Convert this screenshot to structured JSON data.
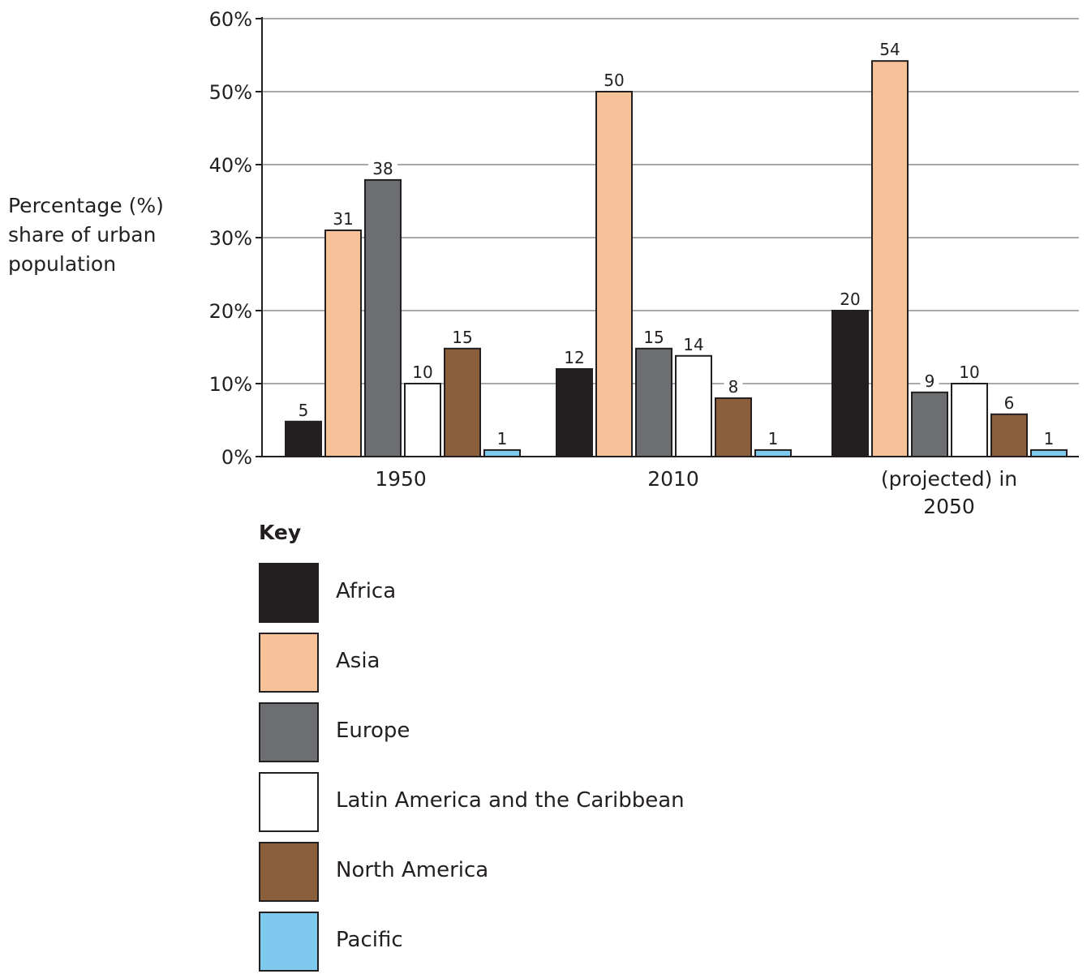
{
  "chart_data": {
    "type": "bar",
    "title": "",
    "ylabel_lines": [
      "Percentage (%)",
      "share of urban",
      "population"
    ],
    "xlabel": "",
    "ylim": [
      0,
      60
    ],
    "yticks": [
      0,
      10,
      20,
      30,
      40,
      50,
      60
    ],
    "ytick_suffix": "%",
    "categories": [
      {
        "lines": [
          "1950"
        ]
      },
      {
        "lines": [
          "2010"
        ]
      },
      {
        "lines": [
          "(projected) in",
          "2050"
        ]
      }
    ],
    "grid": true,
    "legend": {
      "title": "Key",
      "placement": "bottom-left"
    },
    "series": [
      {
        "name": "Africa",
        "color": "#231f20",
        "values": [
          5,
          12,
          20
        ],
        "plotted": [
          4.8,
          12,
          20
        ]
      },
      {
        "name": "Asia",
        "color": "#f7c19a",
        "values": [
          31,
          50,
          54
        ],
        "plotted": [
          31,
          50,
          54.2
        ]
      },
      {
        "name": "Europe",
        "color": "#6d6e71",
        "values": [
          38,
          15,
          9
        ],
        "plotted": [
          37.9,
          14.8,
          8.8
        ]
      },
      {
        "name": "Latin America and the Caribbean",
        "color": "#ffffff",
        "values": [
          10,
          14,
          10
        ],
        "plotted": [
          10,
          13.8,
          10
        ]
      },
      {
        "name": "North America",
        "color": "#8b5e3c",
        "values": [
          15,
          8,
          6
        ],
        "plotted": [
          14.8,
          8,
          5.8
        ]
      },
      {
        "name": "Pacific",
        "color": "#7fc9ee",
        "values": [
          1,
          1,
          1
        ],
        "plotted": [
          0.9,
          0.9,
          0.9
        ]
      }
    ]
  }
}
